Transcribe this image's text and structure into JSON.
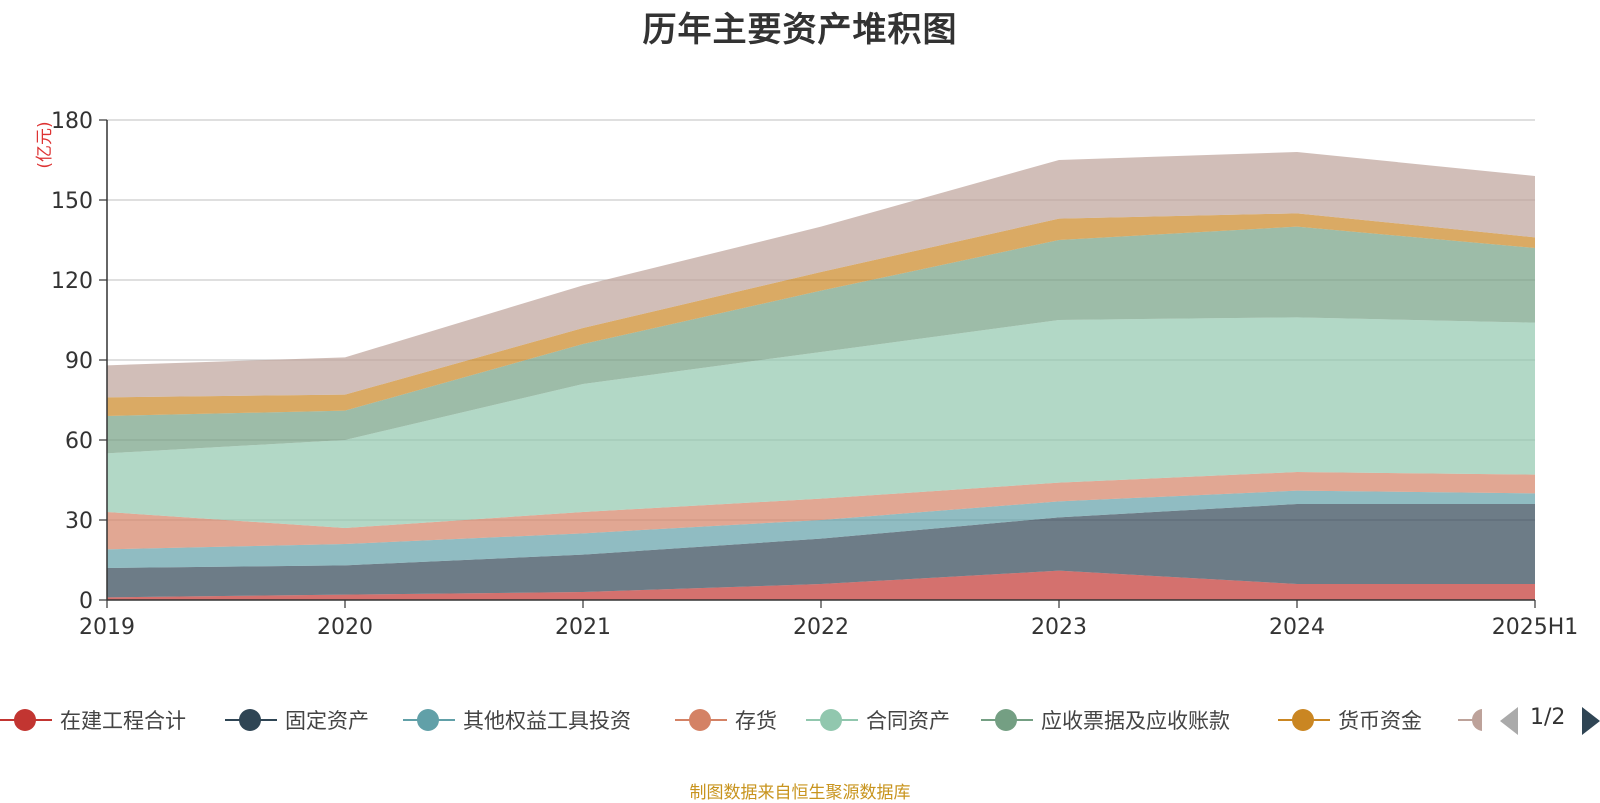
{
  "title": "历年主要资产堆积图",
  "source_note": "制图数据来自恒生聚源数据库",
  "pager": {
    "text": "1/2"
  },
  "chart_data": {
    "type": "area",
    "stacked": true,
    "title": "历年主要资产堆积图",
    "ylabel": "(亿元)",
    "xlabel": "",
    "categories": [
      "2019",
      "2020",
      "2021",
      "2022",
      "2023",
      "2024",
      "2025H1"
    ],
    "ylim": [
      0,
      180
    ],
    "yticks": [
      "0",
      "30",
      "60",
      "90",
      "120",
      "150",
      "180"
    ],
    "grid": true,
    "legend_position": "bottom",
    "series": [
      {
        "name": "在建工程合计",
        "color": "#c23531",
        "values": [
          1,
          2,
          3,
          6,
          11,
          6,
          6
        ]
      },
      {
        "name": "固定资产",
        "color": "#2f4554",
        "values": [
          11,
          11,
          14,
          17,
          20,
          30,
          30
        ]
      },
      {
        "name": "其他权益工具投资",
        "color": "#61a0a8",
        "values": [
          7,
          8,
          8,
          7,
          6,
          5,
          4
        ]
      },
      {
        "name": "存货",
        "color": "#d48265",
        "values": [
          14,
          6,
          8,
          8,
          7,
          7,
          7
        ]
      },
      {
        "name": "合同资产",
        "color": "#91c7ae",
        "values": [
          22,
          33,
          48,
          55,
          61,
          58,
          57
        ]
      },
      {
        "name": "应收票据及应收账款",
        "color": "#749f83",
        "values": [
          14,
          11,
          15,
          23,
          30,
          34,
          28
        ]
      },
      {
        "name": "货币资金",
        "color": "#ca8622",
        "values": [
          7,
          6,
          6,
          7,
          8,
          5,
          4
        ]
      },
      {
        "name": "",
        "color": "#bda29a",
        "values": [
          12,
          14,
          16,
          17,
          22,
          23,
          23
        ]
      }
    ]
  }
}
